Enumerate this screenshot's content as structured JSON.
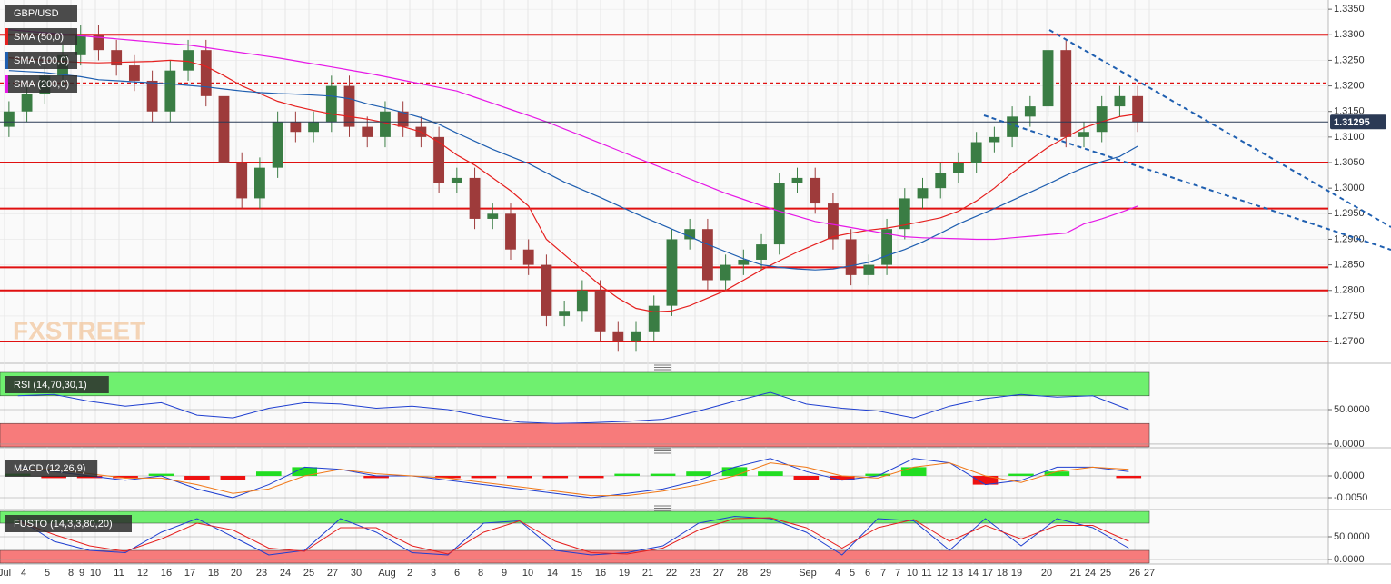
{
  "chart_data": [
    {
      "type": "candlestick",
      "title": "GBP/USD",
      "watermark": "FXSTREET",
      "up_color": "#3a7d44",
      "down_color": "#9e3b3b",
      "open": [
        1.312,
        1.315,
        1.3185,
        1.322,
        1.326,
        1.33,
        1.327,
        1.324,
        1.321,
        1.315,
        1.323,
        1.327,
        1.318,
        1.305,
        1.298,
        1.304,
        1.313,
        1.311,
        1.313,
        1.32,
        1.312,
        1.31,
        1.315,
        1.312,
        1.31,
        1.301,
        1.302,
        1.294,
        1.295,
        1.288,
        1.285,
        1.275,
        1.276,
        1.28,
        1.272,
        1.27,
        1.272,
        1.277,
        1.29,
        1.292,
        1.282,
        1.285,
        1.286,
        1.289,
        1.301,
        1.302,
        1.297,
        1.29,
        1.283,
        1.285,
        1.292,
        1.298,
        1.3,
        1.303,
        1.305,
        1.309,
        1.31,
        1.314,
        1.316,
        1.327,
        1.31,
        1.311,
        1.316,
        1.318
      ],
      "high": [
        1.317,
        1.3205,
        1.324,
        1.328,
        1.332,
        1.332,
        1.329,
        1.326,
        1.323,
        1.325,
        1.329,
        1.329,
        1.32,
        1.307,
        1.306,
        1.315,
        1.315,
        1.315,
        1.322,
        1.322,
        1.314,
        1.317,
        1.317,
        1.314,
        1.312,
        1.304,
        1.304,
        1.297,
        1.297,
        1.29,
        1.287,
        1.278,
        1.282,
        1.282,
        1.274,
        1.274,
        1.279,
        1.292,
        1.294,
        1.294,
        1.287,
        1.288,
        1.291,
        1.303,
        1.304,
        1.304,
        1.299,
        1.292,
        1.287,
        1.294,
        1.3,
        1.302,
        1.305,
        1.307,
        1.311,
        1.312,
        1.316,
        1.318,
        1.329,
        1.329,
        1.313,
        1.318,
        1.32,
        1.32
      ],
      "low": [
        1.31,
        1.313,
        1.3165,
        1.32,
        1.324,
        1.325,
        1.322,
        1.319,
        1.313,
        1.313,
        1.321,
        1.316,
        1.303,
        1.296,
        1.296,
        1.302,
        1.309,
        1.309,
        1.311,
        1.31,
        1.308,
        1.308,
        1.31,
        1.308,
        1.299,
        1.299,
        1.292,
        1.292,
        1.286,
        1.283,
        1.273,
        1.273,
        1.274,
        1.27,
        1.268,
        1.268,
        1.27,
        1.275,
        1.288,
        1.28,
        1.28,
        1.283,
        1.284,
        1.287,
        1.299,
        1.295,
        1.288,
        1.281,
        1.281,
        1.283,
        1.29,
        1.296,
        1.298,
        1.301,
        1.303,
        1.307,
        1.308,
        1.312,
        1.314,
        1.308,
        1.308,
        1.309,
        1.314,
        1.311
      ],
      "close": [
        1.315,
        1.3185,
        1.322,
        1.326,
        1.33,
        1.327,
        1.324,
        1.321,
        1.315,
        1.323,
        1.327,
        1.318,
        1.305,
        1.298,
        1.304,
        1.313,
        1.311,
        1.313,
        1.32,
        1.312,
        1.31,
        1.315,
        1.312,
        1.31,
        1.301,
        1.302,
        1.294,
        1.295,
        1.288,
        1.285,
        1.275,
        1.276,
        1.28,
        1.272,
        1.27,
        1.272,
        1.277,
        1.29,
        1.292,
        1.282,
        1.285,
        1.286,
        1.289,
        1.301,
        1.302,
        1.297,
        1.29,
        1.283,
        1.285,
        1.292,
        1.298,
        1.3,
        1.303,
        1.305,
        1.309,
        1.31,
        1.314,
        1.316,
        1.327,
        1.31,
        1.311,
        1.316,
        1.318,
        1.31295
      ],
      "series": [
        {
          "name": "SMA (50,0)",
          "color": "#e5201f",
          "values": [
            1.3255,
            1.3252,
            1.325,
            1.3248,
            1.3246,
            1.3245,
            1.3246,
            1.3247,
            1.3248,
            1.325,
            1.3248,
            1.3238,
            1.322,
            1.32,
            1.3185,
            1.317,
            1.316,
            1.3152,
            1.3145,
            1.314,
            1.3135,
            1.3128,
            1.312,
            1.311,
            1.309,
            1.3065,
            1.3045,
            1.302,
            1.2995,
            1.2965,
            1.29,
            1.287,
            1.284,
            1.281,
            1.2785,
            1.2765,
            1.2758,
            1.276,
            1.277,
            1.2785,
            1.28,
            1.282,
            1.284,
            1.2858,
            1.2875,
            1.289,
            1.2905,
            1.2912,
            1.2918,
            1.2922,
            1.2928,
            1.2935,
            1.2942,
            1.2955,
            1.2975,
            1.3,
            1.303,
            1.3055,
            1.308,
            1.31,
            1.3118,
            1.313,
            1.314,
            1.3145
          ]
        },
        {
          "name": "SMA (100,0)",
          "color": "#1f5fb0",
          "values": [
            1.323,
            1.3228,
            1.3226,
            1.3222,
            1.3218,
            1.3212,
            1.321,
            1.3208,
            1.3206,
            1.3204,
            1.3201,
            1.3198,
            1.3194,
            1.319,
            1.3187,
            1.3185,
            1.3184,
            1.3182,
            1.318,
            1.3175,
            1.3165,
            1.3157,
            1.3148,
            1.3138,
            1.3125,
            1.3108,
            1.3092,
            1.3076,
            1.3062,
            1.3048,
            1.303,
            1.3012,
            1.2997,
            1.2982,
            1.2966,
            1.295,
            1.2935,
            1.292,
            1.2905,
            1.289,
            1.2876,
            1.2862,
            1.285,
            1.2845,
            1.2842,
            1.284,
            1.2842,
            1.2848,
            1.2855,
            1.2868,
            1.288,
            1.2895,
            1.2912,
            1.293,
            1.2945,
            1.296,
            1.2976,
            1.2992,
            1.3008,
            1.3025,
            1.304,
            1.3052,
            1.3062,
            1.3082
          ]
        },
        {
          "name": "SMA (200,0)",
          "color": "#e619e6",
          "values": [
            1.331,
            1.3307,
            1.3304,
            1.3301,
            1.3298,
            1.3295,
            1.3292,
            1.3289,
            1.3286,
            1.3283,
            1.328,
            1.3275,
            1.327,
            1.3265,
            1.326,
            1.3255,
            1.3249,
            1.3243,
            1.3237,
            1.3231,
            1.3225,
            1.3218,
            1.3211,
            1.3204,
            1.3197,
            1.319,
            1.3178,
            1.3166,
            1.3154,
            1.3142,
            1.313,
            1.3116,
            1.3102,
            1.3088,
            1.3074,
            1.306,
            1.3046,
            1.3032,
            1.3018,
            1.3004,
            1.299,
            1.2978,
            1.2966,
            1.2955,
            1.2945,
            1.2935,
            1.2929,
            1.2923,
            1.2917,
            1.2911,
            1.2905,
            1.2903,
            1.2902,
            1.2901,
            1.29,
            1.29,
            1.2903,
            1.2906,
            1.2909,
            1.2912,
            1.293,
            1.294,
            1.2952,
            1.2965
          ]
        }
      ],
      "levels": [
        {
          "value": 1.33,
          "style": "solid"
        },
        {
          "value": 1.3205,
          "style": "dashed"
        },
        {
          "value": 1.305,
          "style": "solid"
        },
        {
          "value": 1.296,
          "style": "solid"
        },
        {
          "value": 1.2845,
          "style": "solid"
        },
        {
          "value": 1.28,
          "style": "solid"
        },
        {
          "value": 1.27,
          "style": "solid"
        }
      ],
      "level_color": "#e01010",
      "last_price": {
        "value": 1.31295,
        "label": "1.31295"
      },
      "ylim": [
        1.2661,
        1.3368
      ],
      "yticks": [
        {
          "value": 1.27,
          "label": "1.2700"
        },
        {
          "value": 1.275,
          "label": "1.2750"
        },
        {
          "value": 1.28,
          "label": "1.2800"
        },
        {
          "value": 1.285,
          "label": "1.2850"
        },
        {
          "value": 1.29,
          "label": "1.2900"
        },
        {
          "value": 1.295,
          "label": "1.2950"
        },
        {
          "value": 1.3,
          "label": "1.3000"
        },
        {
          "value": 1.305,
          "label": "1.3050"
        },
        {
          "value": 1.31,
          "label": "1.3100"
        },
        {
          "value": 1.315,
          "label": "1.3150"
        },
        {
          "value": 1.32,
          "label": "1.3200"
        },
        {
          "value": 1.325,
          "label": "1.3250"
        },
        {
          "value": 1.33,
          "label": "1.3300"
        },
        {
          "value": 1.335,
          "label": "1.3350"
        }
      ],
      "x_axis_labels": [
        "Jul",
        "4",
        "5",
        "8",
        "9",
        "10",
        "11",
        "12",
        "16",
        "17",
        "18",
        "20",
        "23",
        "24",
        "25",
        "27",
        "30",
        "Aug",
        "2",
        "3",
        "6",
        "8",
        "9",
        "10",
        "14",
        "15",
        "16",
        "19",
        "21",
        "22",
        "23",
        "27",
        "28",
        "29",
        "Sep",
        "4",
        "5",
        "6",
        "7",
        "7",
        "10",
        "11",
        "12",
        "13",
        "14",
        "17",
        "18",
        "19",
        "20",
        "21",
        "24",
        "25",
        "26",
        "27"
      ]
    },
    {
      "type": "line",
      "title": "RSI (14,70,30,1)",
      "series": [
        {
          "color": "#1f3fd0",
          "values": [
            70,
            72,
            62,
            55,
            60,
            42,
            38,
            52,
            60,
            58,
            52,
            55,
            50,
            40,
            32,
            30,
            31,
            33,
            36,
            48,
            62,
            75,
            58,
            52,
            48,
            38,
            55,
            66,
            72,
            68,
            70,
            50
          ]
        }
      ],
      "bands": {
        "upper": 70,
        "lower": 30
      },
      "ylim": [
        -4,
        104
      ],
      "yticks": [
        {
          "value": 50,
          "label": "50.0000"
        },
        {
          "value": 0,
          "label": "0.0000"
        }
      ]
    },
    {
      "type": "macd",
      "title": "MACD (12,26,9)",
      "series": [
        {
          "color": "#1f3fd0",
          "values": [
            0.002,
            0.001,
            0.0,
            -0.001,
            0.0,
            -0.003,
            -0.005,
            -0.002,
            0.002,
            0.0015,
            0.0,
            0.0,
            -0.001,
            -0.002,
            -0.003,
            -0.004,
            -0.005,
            -0.004,
            -0.003,
            -0.001,
            0.002,
            0.004,
            0.001,
            -0.001,
            0.0,
            0.004,
            0.003,
            -0.002,
            -0.001,
            0.002,
            0.002,
            0.001
          ]
        },
        {
          "color": "#f07818",
          "values": [
            0.0015,
            0.0015,
            0.0005,
            -0.0005,
            -0.0005,
            -0.002,
            -0.004,
            -0.003,
            0.0,
            0.0015,
            0.0005,
            0.0,
            -0.0005,
            -0.0015,
            -0.0025,
            -0.0035,
            -0.0045,
            -0.0045,
            -0.0035,
            -0.002,
            0.0,
            0.003,
            0.002,
            0.0,
            -0.0005,
            0.002,
            0.003,
            0.0,
            -0.0015,
            0.001,
            0.002,
            0.0015
          ]
        }
      ],
      "histogram": [
        0.0005,
        -0.0005,
        -0.0005,
        -0.0005,
        0.0005,
        -0.001,
        -0.001,
        0.001,
        0.002,
        0.0,
        -0.0005,
        0.0,
        -0.0005,
        -0.0005,
        -0.0005,
        -0.0005,
        -0.0005,
        0.0005,
        0.0005,
        0.001,
        0.002,
        0.001,
        -0.001,
        -0.001,
        0.0005,
        0.002,
        0.0,
        -0.002,
        0.0005,
        0.001,
        0.0,
        -0.0005
      ],
      "positive_color": "#22dd22",
      "negative_color": "#ee1111",
      "ylim": [
        -0.0075,
        0.00625
      ],
      "yticks": [
        {
          "value": 0,
          "label": "0.0000"
        },
        {
          "value": -0.005,
          "label": "-0.0050"
        }
      ]
    },
    {
      "type": "line",
      "title": "FUSTO (14,3,3,80,20)",
      "series": [
        {
          "color": "#1f3fd0",
          "values": [
            90,
            40,
            20,
            15,
            60,
            90,
            50,
            10,
            20,
            90,
            60,
            15,
            10,
            80,
            85,
            20,
            10,
            15,
            30,
            80,
            95,
            90,
            60,
            10,
            90,
            85,
            20,
            90,
            30,
            90,
            70,
            25
          ]
        },
        {
          "color": "#e5201f",
          "values": [
            85,
            55,
            30,
            18,
            45,
            80,
            65,
            25,
            18,
            70,
            70,
            30,
            12,
            60,
            85,
            40,
            15,
            12,
            25,
            65,
            90,
            92,
            70,
            25,
            70,
            88,
            40,
            75,
            45,
            75,
            75,
            40
          ]
        }
      ],
      "bands": {
        "upper": 80,
        "lower": 20
      },
      "ylim": [
        -8,
        106
      ],
      "yticks": [
        {
          "value": 50,
          "label": "50.0000"
        },
        {
          "value": 0,
          "label": "0.0000"
        }
      ]
    }
  ]
}
